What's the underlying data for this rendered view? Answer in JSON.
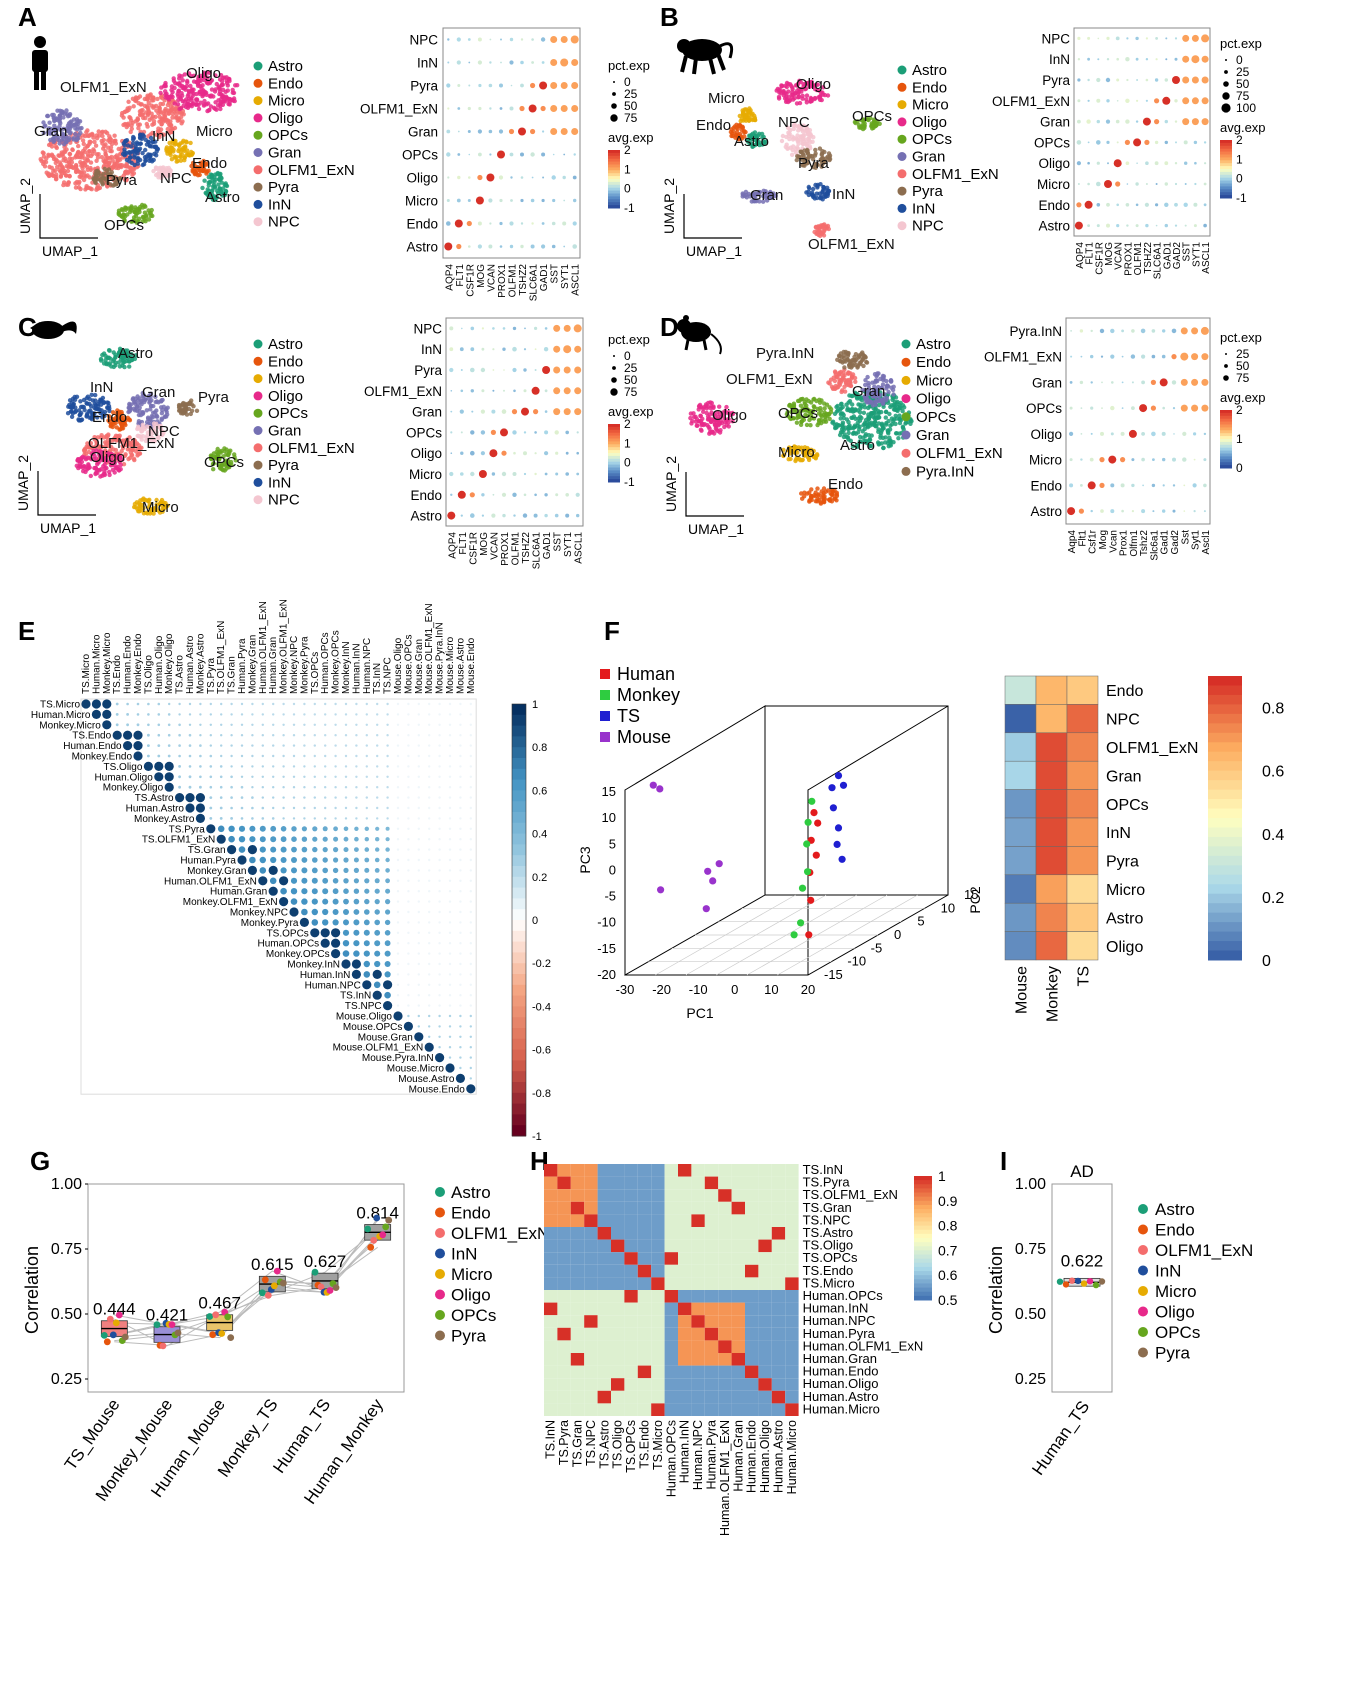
{
  "panel_labels": [
    "A",
    "B",
    "C",
    "D",
    "E",
    "F",
    "G",
    "H",
    "I"
  ],
  "colors": {
    "Astro": "#1b9e77",
    "Endo": "#e6550d",
    "Micro": "#e6ab02",
    "Oligo": "#e7298a",
    "OPCs": "#66a61e",
    "Gran": "#7570b3",
    "OLFM1_ExN": "#f46d6d",
    "Pyra": "#8c6d4f",
    "InN": "#1f4e9c",
    "NPC": "#f4c6d0",
    "Pyra.InN": "#8c6d4f"
  },
  "umap_axis": {
    "x": "UMAP_1",
    "y": "UMAP_2"
  },
  "dot_legend": {
    "size_title": "pct.exp",
    "color_title": "avg.exp"
  },
  "chart_data": [
    {
      "panel": "A",
      "type": "scatter",
      "species_icon": "human-icon",
      "legend": [
        "Astro",
        "Endo",
        "Micro",
        "Oligo",
        "OPCs",
        "Gran",
        "OLFM1_ExN",
        "Pyra",
        "InN",
        "NPC"
      ],
      "cluster_labels": [
        {
          "text": "OLFM1_ExN",
          "cell": "OLFM1_ExN"
        },
        {
          "text": "Oligo",
          "cell": "Oligo"
        },
        {
          "text": "Gran",
          "cell": "Gran"
        },
        {
          "text": "InN",
          "cell": "InN"
        },
        {
          "text": "Micro",
          "cell": "Micro"
        },
        {
          "text": "Endo",
          "cell": "Endo"
        },
        {
          "text": "Pyra",
          "cell": "Pyra"
        },
        {
          "text": "NPC",
          "cell": "NPC"
        },
        {
          "text": "Astro",
          "cell": "Astro"
        },
        {
          "text": "OPCs",
          "cell": "OPCs"
        }
      ]
    },
    {
      "panel": "A",
      "type": "dot",
      "rows": [
        "NPC",
        "InN",
        "Pyra",
        "OLFM1_ExN",
        "Gran",
        "OPCs",
        "Oligo",
        "Micro",
        "Endo",
        "Astro"
      ],
      "genes": [
        "AQP4",
        "FLT1",
        "CSF1R",
        "MOG",
        "VCAN",
        "PROX1",
        "OLFM1",
        "TSHZ2",
        "SLC6A1",
        "GAD1",
        "SST",
        "SYT1",
        "ASCL1"
      ],
      "size_breaks": [
        0,
        25,
        50,
        75
      ],
      "color_range": [
        -1,
        2
      ],
      "color_ticks": [
        2,
        1,
        0,
        -1
      ]
    },
    {
      "panel": "B",
      "type": "scatter",
      "species_icon": "monkey-icon",
      "legend": [
        "Astro",
        "Endo",
        "Micro",
        "Oligo",
        "OPCs",
        "Gran",
        "OLFM1_ExN",
        "Pyra",
        "InN",
        "NPC"
      ],
      "cluster_labels": [
        {
          "text": "Oligo",
          "cell": "Oligo"
        },
        {
          "text": "Micro",
          "cell": "Micro"
        },
        {
          "text": "Endo",
          "cell": "Endo"
        },
        {
          "text": "NPC",
          "cell": "NPC"
        },
        {
          "text": "Astro",
          "cell": "Astro"
        },
        {
          "text": "OPCs",
          "cell": "OPCs"
        },
        {
          "text": "Pyra",
          "cell": "Pyra"
        },
        {
          "text": "Gran",
          "cell": "Gran"
        },
        {
          "text": "InN",
          "cell": "InN"
        },
        {
          "text": "OLFM1_ExN",
          "cell": "OLFM1_ExN"
        }
      ]
    },
    {
      "panel": "B",
      "type": "dot",
      "rows": [
        "NPC",
        "InN",
        "Pyra",
        "OLFM1_ExN",
        "Gran",
        "OPCs",
        "Oligo",
        "Micro",
        "Endo",
        "Astro"
      ],
      "genes": [
        "AQP4",
        "FLT1",
        "CSF1R",
        "MOG",
        "VCAN",
        "PROX1",
        "OLFM1",
        "TSHZ2",
        "SLC6A1",
        "GAD1",
        "GAD2",
        "SST",
        "SYT1",
        "ASCL1"
      ],
      "size_breaks": [
        0,
        25,
        50,
        75,
        100
      ],
      "color_range": [
        -1,
        2
      ],
      "color_ticks": [
        2,
        1,
        0,
        -1
      ]
    },
    {
      "panel": "C",
      "type": "scatter",
      "species_icon": "treeshrew-icon",
      "legend": [
        "Astro",
        "Endo",
        "Micro",
        "Oligo",
        "OPCs",
        "Gran",
        "OLFM1_ExN",
        "Pyra",
        "InN",
        "NPC"
      ],
      "cluster_labels": [
        {
          "text": "Astro",
          "cell": "Astro"
        },
        {
          "text": "InN",
          "cell": "InN"
        },
        {
          "text": "Gran",
          "cell": "Gran"
        },
        {
          "text": "Pyra",
          "cell": "Pyra"
        },
        {
          "text": "Endo",
          "cell": "Endo"
        },
        {
          "text": "NPC",
          "cell": "NPC"
        },
        {
          "text": "OLFM1_ExN",
          "cell": "OLFM1_ExN"
        },
        {
          "text": "Oligo",
          "cell": "Oligo"
        },
        {
          "text": "OPCs",
          "cell": "OPCs"
        },
        {
          "text": "Micro",
          "cell": "Micro"
        }
      ]
    },
    {
      "panel": "C",
      "type": "dot",
      "rows": [
        "NPC",
        "InN",
        "Pyra",
        "OLFM1_ExN",
        "Gran",
        "OPCs",
        "Oligo",
        "Micro",
        "Endo",
        "Astro"
      ],
      "genes": [
        "AQP4",
        "FLT1",
        "CSF1R",
        "MOG",
        "VCAN",
        "PROX1",
        "OLFM1",
        "TSHZ2",
        "SLC6A1",
        "GAD1",
        "SST",
        "SYT1",
        "ASCL1"
      ],
      "size_breaks": [
        0,
        25,
        50,
        75
      ],
      "color_range": [
        -1,
        2
      ],
      "color_ticks": [
        2,
        1,
        0,
        -1
      ]
    },
    {
      "panel": "D",
      "type": "scatter",
      "species_icon": "mouse-icon",
      "legend": [
        "Astro",
        "Endo",
        "Micro",
        "Oligo",
        "OPCs",
        "Gran",
        "OLFM1_ExN",
        "Pyra.InN"
      ],
      "cluster_labels": [
        {
          "text": "Pyra.InN",
          "cell": "Pyra.InN"
        },
        {
          "text": "OLFM1_ExN",
          "cell": "OLFM1_ExN"
        },
        {
          "text": "Gran",
          "cell": "Gran"
        },
        {
          "text": "Oligo",
          "cell": "Oligo"
        },
        {
          "text": "OPCs",
          "cell": "OPCs"
        },
        {
          "text": "Astro",
          "cell": "Astro"
        },
        {
          "text": "Micro",
          "cell": "Micro"
        },
        {
          "text": "Endo",
          "cell": "Endo"
        }
      ]
    },
    {
      "panel": "D",
      "type": "dot",
      "rows": [
        "Pyra.InN",
        "OLFM1_ExN",
        "Gran",
        "OPCs",
        "Oligo",
        "Micro",
        "Endo",
        "Astro"
      ],
      "genes": [
        "Aqp4",
        "Flt1",
        "Csf1r",
        "Mog",
        "Vcan",
        "Prox1",
        "Olfm1",
        "Tshz2",
        "Slc6a1",
        "Gad1",
        "Gad2",
        "Sst",
        "Syt1",
        "Ascl1"
      ],
      "size_breaks": [
        25,
        50,
        75
      ],
      "color_range": [
        0,
        2
      ],
      "color_ticks": [
        2,
        1,
        0
      ]
    },
    {
      "panel": "E",
      "type": "heatmap",
      "labels": [
        "TS.Micro",
        "Human.Micro",
        "Monkey.Micro",
        "TS.Endo",
        "Human.Endo",
        "Monkey.Endo",
        "TS.Oligo",
        "Human.Oligo",
        "Monkey.Oligo",
        "TS.Astro",
        "Human.Astro",
        "Monkey.Astro",
        "TS.Pyra",
        "TS.OLFM1_ExN",
        "TS.Gran",
        "Human.Pyra",
        "Monkey.Gran",
        "Human.OLFM1_ExN",
        "Human.Gran",
        "Monkey.OLFM1_ExN",
        "Monkey.NPC",
        "Monkey.Pyra",
        "TS.OPCs",
        "Human.OPCs",
        "Monkey.OPCs",
        "Monkey.InN",
        "Human.InN",
        "Human.NPC",
        "TS.InN",
        "TS.NPC",
        "Mouse.Oligo",
        "Mouse.OPCs",
        "Mouse.Gran",
        "Mouse.OLFM1_ExN",
        "Mouse.Pyra.InN",
        "Mouse.Micro",
        "Mouse.Astro",
        "Mouse.Endo"
      ],
      "color_range": [
        -1,
        1
      ],
      "color_ticks": [
        1,
        0.8,
        0.6,
        0.4,
        0.2,
        0,
        -0.2,
        -0.4,
        -0.6,
        -0.8,
        -1
      ]
    },
    {
      "panel": "F",
      "type": "scatter",
      "legend": [
        "Human",
        "Monkey",
        "TS",
        "Mouse"
      ],
      "legend_colors": [
        "#e31a1c",
        "#2ecc40",
        "#1f1fd1",
        "#9933cc"
      ],
      "xlabel": "PC1",
      "ylabel": "PC3",
      "zlabel": "PC2",
      "x_ticks": [
        -30,
        -20,
        -10,
        0,
        10,
        20
      ],
      "y_ticks": [
        -20,
        -15,
        -10,
        -5,
        0,
        5,
        10,
        15
      ],
      "z_ticks": [
        -15,
        -10,
        -5,
        0,
        5,
        10,
        15
      ],
      "points": [
        {
          "g": "Mouse",
          "x": -28,
          "y": 14,
          "z": 0
        },
        {
          "g": "Mouse",
          "x": -27,
          "y": 13,
          "z": 2
        },
        {
          "g": "Mouse",
          "x": -26,
          "y": -6,
          "z": 0
        },
        {
          "g": "Mouse",
          "x": -12,
          "y": -2,
          "z": -3
        },
        {
          "g": "Mouse",
          "x": -11,
          "y": -4,
          "z": -2
        },
        {
          "g": "Mouse",
          "x": -12,
          "y": -9,
          "z": -4
        },
        {
          "g": "Mouse",
          "x": -10,
          "y": -1,
          "z": 0
        },
        {
          "g": "Human",
          "x": 14,
          "y": 8,
          "z": 5
        },
        {
          "g": "Human",
          "x": 15,
          "y": 6,
          "z": 5
        },
        {
          "g": "Human",
          "x": 14,
          "y": 3,
          "z": 3
        },
        {
          "g": "Human",
          "x": 15,
          "y": 0,
          "z": 4
        },
        {
          "g": "Human",
          "x": 14,
          "y": -3,
          "z": 2
        },
        {
          "g": "Human",
          "x": 15,
          "y": -8,
          "z": 0
        },
        {
          "g": "Human",
          "x": 16,
          "y": -14,
          "z": -4
        },
        {
          "g": "Monkey",
          "x": 13,
          "y": 10,
          "z": 6
        },
        {
          "g": "Monkey",
          "x": 12,
          "y": 6,
          "z": 6
        },
        {
          "g": "Monkey",
          "x": 12,
          "y": 2,
          "z": 5
        },
        {
          "g": "Monkey",
          "x": 13,
          "y": -3,
          "z": 3
        },
        {
          "g": "Monkey",
          "x": 12,
          "y": -6,
          "z": 2
        },
        {
          "g": "Monkey",
          "x": 13,
          "y": -12,
          "z": -2
        },
        {
          "g": "Monkey",
          "x": 12,
          "y": -14,
          "z": -4
        },
        {
          "g": "TS",
          "x": 18,
          "y": 14,
          "z": 12
        },
        {
          "g": "TS",
          "x": 19,
          "y": 12,
          "z": 13
        },
        {
          "g": "TS",
          "x": 17,
          "y": 8,
          "z": 11
        },
        {
          "g": "TS",
          "x": 18,
          "y": 4,
          "z": 12
        },
        {
          "g": "TS",
          "x": 18,
          "y": 1,
          "z": 11
        },
        {
          "g": "TS",
          "x": 19,
          "y": -2,
          "z": 12
        },
        {
          "g": "TS",
          "x": 17,
          "y": 12,
          "z": 10
        }
      ]
    },
    {
      "panel": "F",
      "type": "heatmap",
      "rows": [
        "Endo",
        "NPC",
        "OLFM1_ExN",
        "Gran",
        "OPCs",
        "InN",
        "Pyra",
        "Micro",
        "Astro",
        "Oligo"
      ],
      "cols": [
        "Mouse",
        "Monkey",
        "TS"
      ],
      "values": [
        [
          0.3,
          0.65,
          0.6
        ],
        [
          null,
          0.65,
          0.8
        ],
        [
          0.2,
          0.85,
          0.75
        ],
        [
          0.22,
          0.85,
          0.72
        ],
        [
          0.1,
          0.85,
          0.75
        ],
        [
          0.12,
          0.85,
          0.72
        ],
        [
          0.12,
          0.85,
          0.72
        ],
        [
          0.05,
          0.7,
          0.55
        ],
        [
          0.1,
          0.75,
          0.6
        ],
        [
          0.08,
          0.8,
          0.55
        ]
      ],
      "color_range": [
        0,
        0.9
      ],
      "color_ticks": [
        0.8,
        0.6,
        0.4,
        0.2,
        0
      ]
    },
    {
      "panel": "G",
      "type": "bar",
      "ylabel": "Correlation",
      "ylim": [
        0.2,
        1.0
      ],
      "yticks": [
        1.0,
        0.75,
        0.5,
        0.25
      ],
      "categories": [
        "TS_Mouse",
        "Monkey_Mouse",
        "Human_Mouse",
        "Monkey_TS",
        "Human_TS",
        "Human_Monkey"
      ],
      "medians": [
        0.444,
        0.421,
        0.467,
        0.615,
        0.627,
        0.814
      ],
      "value_labels": [
        "0.444",
        "0.421",
        "0.467",
        "0.615",
        "0.627",
        "0.814"
      ],
      "box_colors": [
        "#f08080",
        "#9a8fd6",
        "#e9c46a",
        "#a0a0a0",
        "#a0a0a0",
        "#a0a0a0"
      ],
      "legend": [
        "Astro",
        "Endo",
        "OLFM1_ExN",
        "InN",
        "Micro",
        "Oligo",
        "OPCs",
        "Pyra"
      ]
    },
    {
      "panel": "H",
      "type": "heatmap",
      "rows": [
        "TS.InN",
        "TS.Pyra",
        "TS.OLFM1_ExN",
        "TS.Gran",
        "TS.NPC",
        "TS.Astro",
        "TS.Oligo",
        "TS.OPCs",
        "TS.Endo",
        "TS.Micro",
        "Human.OPCs",
        "Human.InN",
        "Human.NPC",
        "Human.Pyra",
        "Human.OLFM1_ExN",
        "Human.Gran",
        "Human.Endo",
        "Human.Oligo",
        "Human.Astro",
        "Human.Micro"
      ],
      "cols": [
        "TS.InN",
        "TS.Pyra",
        "TS.Gran",
        "TS.NPC",
        "TS.Astro",
        "TS.Oligo",
        "TS.OPCs",
        "TS.Endo",
        "TS.Micro",
        "Human.OPCs",
        "Human.InN",
        "Human.NPC",
        "Human.Pyra",
        "Human.OLFM1_ExN",
        "Human.Gran",
        "Human.Endo",
        "Human.Oligo",
        "Human.Astro",
        "Human.Micro"
      ],
      "color_range": [
        0.5,
        1.0
      ],
      "color_ticks": [
        1,
        0.9,
        0.8,
        0.7,
        0.6,
        0.5
      ]
    },
    {
      "panel": "I",
      "type": "bar",
      "title": "AD",
      "ylabel": "Correlation",
      "ylim": [
        0.2,
        1.0
      ],
      "yticks": [
        1.0,
        0.75,
        0.5,
        0.25
      ],
      "categories": [
        "Human_TS"
      ],
      "medians": [
        0.622
      ],
      "value_labels": [
        "0.622"
      ],
      "legend": [
        "Astro",
        "Endo",
        "OLFM1_ExN",
        "InN",
        "Micro",
        "Oligo",
        "OPCs",
        "Pyra"
      ]
    }
  ]
}
